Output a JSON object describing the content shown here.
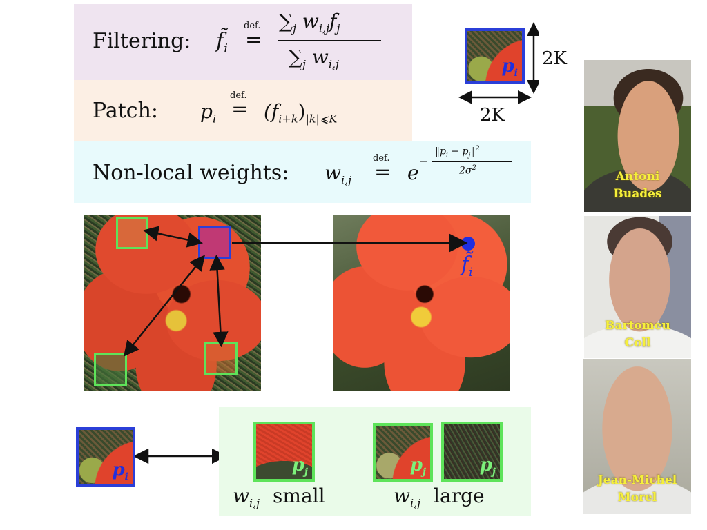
{
  "formulas": {
    "filtering": {
      "label": "Filtering:",
      "lhs": "f̃",
      "lhs_sub": "i",
      "def": "def.",
      "eq": "=",
      "num": "∑",
      "num_sub": "j",
      "num_rest": "w",
      "num_w_sub": "i,j",
      "num_f": "f",
      "num_f_sub": "j",
      "den": "∑",
      "den_sub": "j",
      "den_rest": "w",
      "den_w_sub": "i,j",
      "color": "#efe4f0"
    },
    "patch": {
      "label": "Patch:",
      "lhs": "p",
      "lhs_sub": "i",
      "def": "def.",
      "eq": "=",
      "rhs_open": "(f",
      "rhs_sub": "i+k",
      "rhs_close": ")",
      "rhs_tail": "|k|⩽K",
      "color": "#fcefe4"
    },
    "weights": {
      "label": "Non-local weights:",
      "lhs": "w",
      "lhs_sub": "i,j",
      "def": "def.",
      "eq": "=",
      "base": "e",
      "exp_sign": "−",
      "exp_num": "‖p",
      "exp_num_i": "i",
      "exp_num_mid": " − p",
      "exp_num_j": "j",
      "exp_num_end": "‖",
      "exp_num_sq": "2",
      "exp_den": "2σ",
      "exp_den_sq": "2",
      "color": "#e8fafc"
    }
  },
  "patch_diagram": {
    "patch_label": "p",
    "patch_sub": "i",
    "height_label": "2K",
    "width_label": "2K"
  },
  "filtered_label": {
    "symbol": "f̃",
    "sub": "i"
  },
  "comparison": {
    "left_label": "p",
    "left_sub": "i",
    "pj_label": "p",
    "pj_sub": "j",
    "small_w": "w",
    "small_w_sub": "i,j",
    "small_text": "small",
    "large_w": "w",
    "large_w_sub": "i,j",
    "large_text": "large",
    "panel_color": "#eafbe9"
  },
  "people": [
    {
      "line1": "Antoni",
      "line2": "Buades"
    },
    {
      "line1": "Bartomeu",
      "line2": "Coll"
    },
    {
      "line1": "Jean-Michel",
      "line2": "Morel"
    }
  ],
  "colors": {
    "patch_blue": "#2b3fd8",
    "patch_green": "#5ee35a",
    "label_blue": "#1f2fe0",
    "label_green": "#7cf07a",
    "name_yellow": "#f6f03a"
  }
}
